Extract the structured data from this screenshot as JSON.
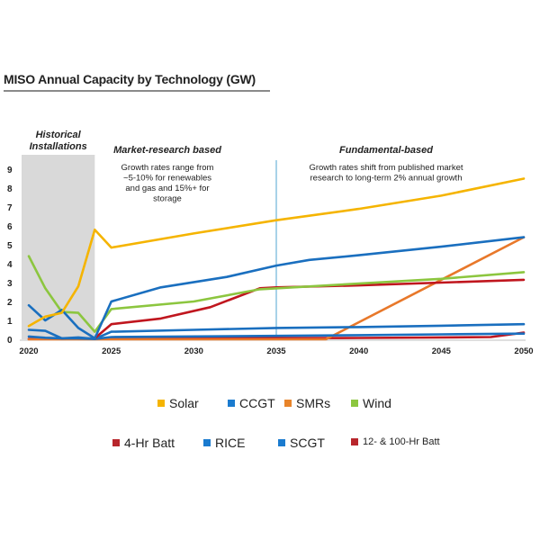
{
  "title": "MISO Annual Capacity by Technology (GW)",
  "chart_data": {
    "type": "line",
    "title": "MISO Annual Capacity by Technology (GW)",
    "xlabel": "",
    "ylabel": "",
    "xlim": [
      2020,
      2050
    ],
    "ylim": [
      0,
      9
    ],
    "xticks": [
      2020,
      2025,
      2030,
      2035,
      2040,
      2045,
      2050
    ],
    "yticks": [
      0,
      1,
      2,
      3,
      4,
      5,
      6,
      7,
      8,
      9
    ],
    "grid": false,
    "legend_position": "bottom",
    "annotations": [
      {
        "label": "historical",
        "heading": "Historical Installations",
        "text": "",
        "x_range": [
          2020,
          2024
        ],
        "shaded": true
      },
      {
        "label": "market",
        "heading": "Market-research based",
        "text_lines": [
          "Growth rates range from",
          "~5-10% for renewables",
          "and gas and 15%+ for",
          "storage"
        ]
      },
      {
        "label": "fundamental",
        "heading": "Fundamental-based",
        "text_lines": [
          "Growth rates shift from published market",
          "research to long-term 2% annual growth"
        ],
        "divider_x": 2035
      }
    ],
    "series": [
      {
        "name": "Solar",
        "color": "#f5b400",
        "points": [
          [
            2020,
            0.7
          ],
          [
            2021,
            1.2
          ],
          [
            2022,
            1.4
          ],
          [
            2023,
            2.8
          ],
          [
            2024,
            5.8
          ],
          [
            2025,
            4.85
          ],
          [
            2030,
            5.6
          ],
          [
            2035,
            6.3
          ],
          [
            2040,
            6.9
          ],
          [
            2045,
            7.6
          ],
          [
            2050,
            8.5
          ]
        ]
      },
      {
        "name": "CCGT",
        "color": "#1a6fbf",
        "points": [
          [
            2020,
            1.8
          ],
          [
            2021,
            1.0
          ],
          [
            2022,
            1.55
          ],
          [
            2023,
            0.6
          ],
          [
            2024,
            0.05
          ],
          [
            2025,
            2.0
          ],
          [
            2028,
            2.75
          ],
          [
            2032,
            3.3
          ],
          [
            2035,
            3.9
          ],
          [
            2037,
            4.2
          ],
          [
            2040,
            4.45
          ],
          [
            2045,
            4.9
          ],
          [
            2050,
            5.4
          ]
        ]
      },
      {
        "name": "SMRs",
        "color": "#e8782a",
        "points": [
          [
            2020,
            0
          ],
          [
            2038,
            0
          ],
          [
            2050,
            5.4
          ]
        ]
      },
      {
        "name": "Wind",
        "color": "#8cc63f",
        "points": [
          [
            2020,
            4.4
          ],
          [
            2021,
            2.7
          ],
          [
            2022,
            1.45
          ],
          [
            2023,
            1.4
          ],
          [
            2024,
            0.4
          ],
          [
            2025,
            1.6
          ],
          [
            2030,
            2.0
          ],
          [
            2034,
            2.65
          ],
          [
            2040,
            2.95
          ],
          [
            2045,
            3.2
          ],
          [
            2050,
            3.55
          ]
        ]
      },
      {
        "name": "4-Hr Batt",
        "color": "#c0161e",
        "points": [
          [
            2024,
            0.05
          ],
          [
            2025,
            0.8
          ],
          [
            2028,
            1.1
          ],
          [
            2031,
            1.7
          ],
          [
            2034,
            2.7
          ],
          [
            2035,
            2.75
          ],
          [
            2040,
            2.85
          ],
          [
            2045,
            3.0
          ],
          [
            2050,
            3.15
          ]
        ]
      },
      {
        "name": "RICE",
        "color": "#1a6fbf",
        "points": [
          [
            2020,
            0.5
          ],
          [
            2021,
            0.45
          ],
          [
            2022,
            0.05
          ],
          [
            2023,
            0.1
          ],
          [
            2024,
            0.02
          ],
          [
            2025,
            0.4
          ],
          [
            2030,
            0.5
          ],
          [
            2035,
            0.6
          ],
          [
            2040,
            0.65
          ],
          [
            2045,
            0.72
          ],
          [
            2050,
            0.8
          ]
        ]
      },
      {
        "name": "SCGT",
        "color": "#1a6fbf",
        "points": [
          [
            2020,
            0.15
          ],
          [
            2021,
            0.08
          ],
          [
            2022,
            0.05
          ],
          [
            2023,
            0.05
          ],
          [
            2024,
            0.02
          ],
          [
            2025,
            0.12
          ],
          [
            2035,
            0.18
          ],
          [
            2040,
            0.22
          ],
          [
            2045,
            0.26
          ],
          [
            2050,
            0.3
          ]
        ]
      },
      {
        "name": "12- & 100-Hr Batt",
        "color": "#c0161e",
        "points": [
          [
            2020,
            0.02
          ],
          [
            2025,
            0.05
          ],
          [
            2035,
            0.06
          ],
          [
            2040,
            0.07
          ],
          [
            2045,
            0.1
          ],
          [
            2048,
            0.12
          ],
          [
            2050,
            0.35
          ]
        ]
      }
    ]
  },
  "legend": {
    "row1": [
      {
        "name": "Solar",
        "color": "#f5b400"
      },
      {
        "name": "CCGT",
        "color": "#1a7bcf"
      },
      {
        "name": "SMRs",
        "color": "#e8842a"
      },
      {
        "name": "Wind",
        "color": "#8cc63f"
      }
    ],
    "row2": [
      {
        "name": "4-Hr Batt",
        "color": "#b8262c"
      },
      {
        "name": "RICE",
        "color": "#1a7bcf"
      },
      {
        "name": "SCGT",
        "color": "#1a7bcf"
      },
      {
        "name": "12- & 100-Hr Batt",
        "color": "#b8262c"
      }
    ]
  }
}
